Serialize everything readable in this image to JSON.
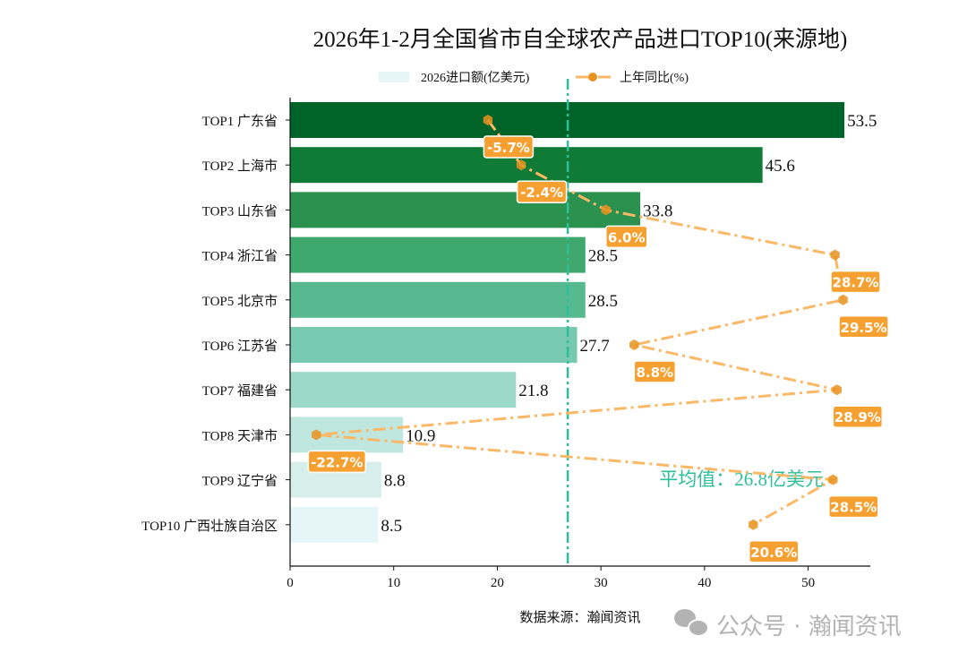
{
  "chart_data": {
    "type": "bar",
    "orientation": "horizontal",
    "title": "2026年1-2月全国省市自全球农产品进口TOP10(来源地)",
    "categories": [
      "TOP1 广东省",
      "TOP2 上海市",
      "TOP3 山东省",
      "TOP4 浙江省",
      "TOP5 北京市",
      "TOP6 江苏省",
      "TOP7 福建省",
      "TOP8 天津市",
      "TOP9 辽宁省",
      "TOP10 广西壮族自治区"
    ],
    "xlim": [
      0,
      56
    ],
    "xticks": [
      0,
      10,
      20,
      30,
      40,
      50
    ],
    "grid": false,
    "legend_position": "top-center",
    "series": [
      {
        "name": "2026进口额(亿美元)",
        "type": "bar",
        "values": [
          53.5,
          45.6,
          33.8,
          28.5,
          28.5,
          27.7,
          21.8,
          10.9,
          8.8,
          8.5
        ],
        "value_labels": [
          "53.5",
          "45.6",
          "33.8",
          "28.5",
          "28.5",
          "27.7",
          "21.8",
          "10.9",
          "8.8",
          "8.5"
        ],
        "colors": [
          "#006428",
          "#107b37",
          "#2a914f",
          "#3fa96d",
          "#57b98f",
          "#77c9af",
          "#9dd9c8",
          "#bfe6df",
          "#d7efeb",
          "#e6f5f8"
        ]
      },
      {
        "name": "上年同比(%)",
        "type": "line",
        "values": [
          -5.7,
          -2.4,
          6.0,
          28.7,
          29.5,
          8.8,
          28.9,
          -22.7,
          28.5,
          20.6
        ],
        "value_labels": [
          "-5.7%",
          "-2.4%",
          "6.0%",
          "28.7%",
          "29.5%",
          "8.8%",
          "28.9%",
          "-22.7%",
          "28.5%",
          "20.6%"
        ],
        "secondary_xlim": [
          -25.3,
          32.2
        ],
        "line_color": "#fbb867",
        "marker_color": "#e8921f",
        "label_bg": "#f5a030"
      }
    ],
    "reference_line": {
      "value": 26.8,
      "label": "平均值：26.8亿美元",
      "color": "#2ebf9a"
    },
    "source": "数据来源：瀚闻资讯"
  },
  "watermark": "公众号 · 瀚闻资讯"
}
